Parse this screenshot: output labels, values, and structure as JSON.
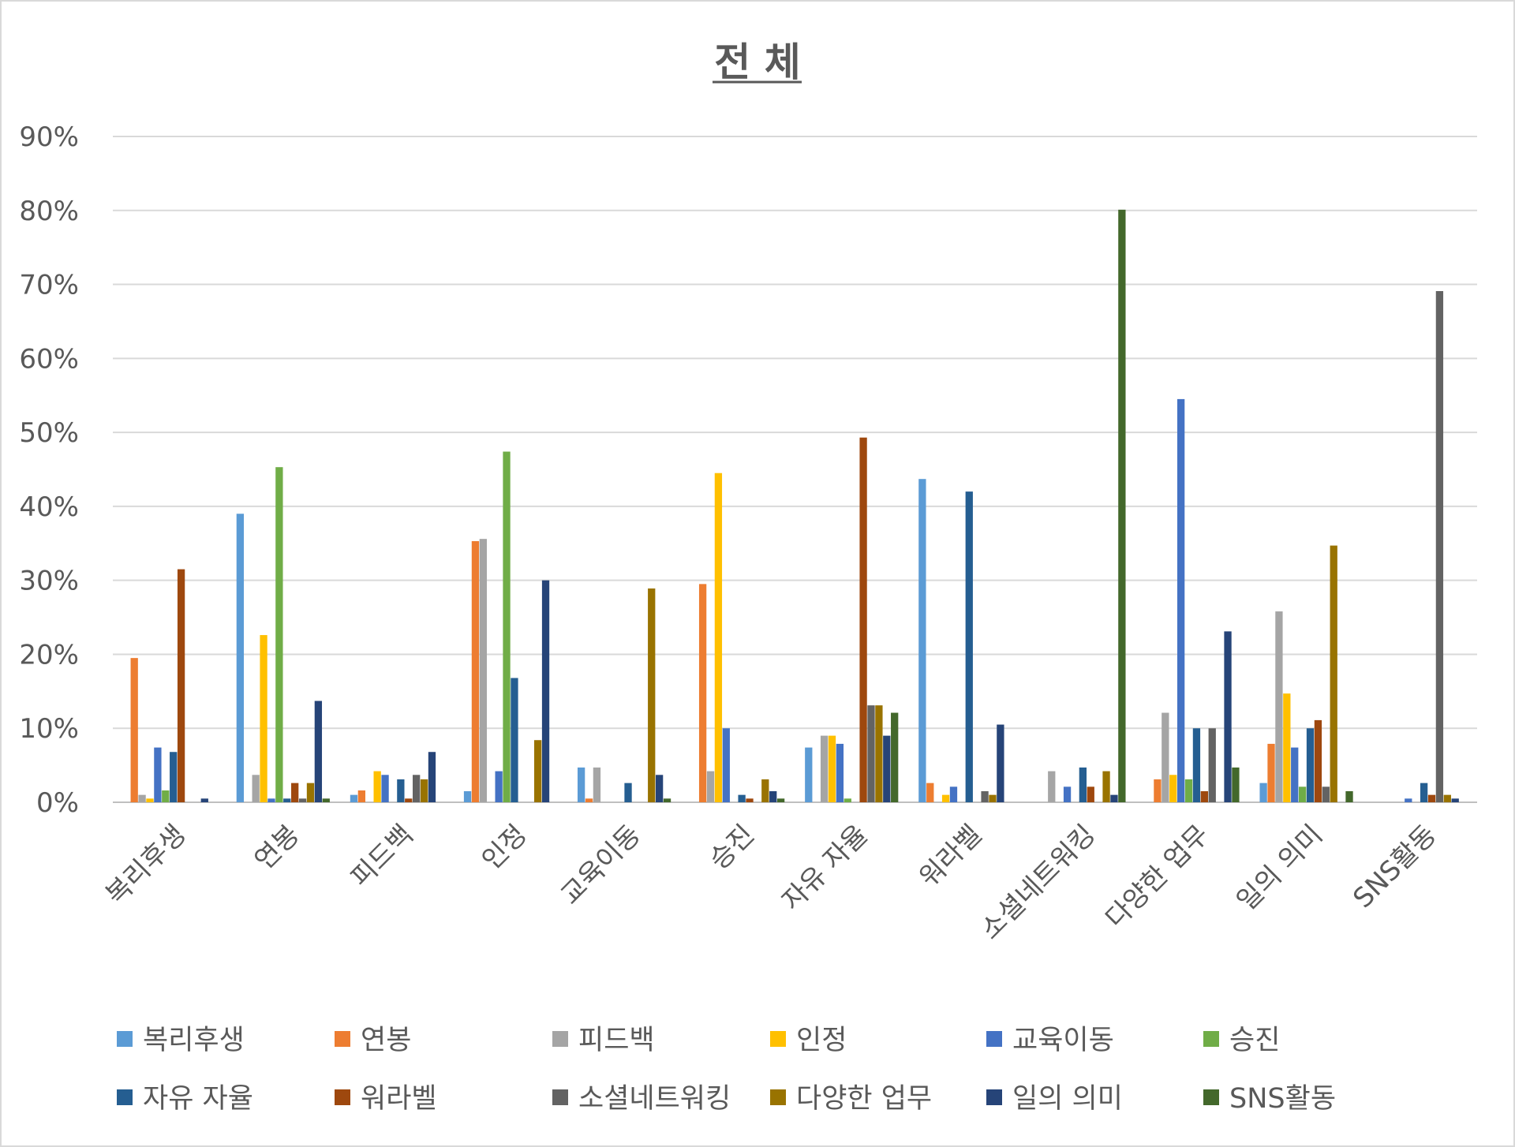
{
  "chart_data": {
    "type": "bar",
    "title": "전 체",
    "xlabel": "",
    "ylabel": "",
    "ylim": [
      0,
      90
    ],
    "yticks": [
      "0%",
      "10%",
      "20%",
      "30%",
      "40%",
      "50%",
      "60%",
      "70%",
      "80%",
      "90%"
    ],
    "grid": true,
    "legend_position": "bottom",
    "categories": [
      "복리후생",
      "연봉",
      "피드백",
      "인정",
      "교육이동",
      "승진",
      "자유 자율",
      "워라벨",
      "소셜네트워킹",
      "다양한 업무",
      "일의 의미",
      "SNS활동"
    ],
    "series": [
      {
        "name": "복리후생",
        "color": "#5b9bd5",
        "values": [
          0,
          39,
          1,
          1.5,
          4.7,
          0,
          7.4,
          43.7,
          0,
          0,
          2.6,
          0
        ]
      },
      {
        "name": "연봉",
        "color": "#ed7d31",
        "values": [
          19.5,
          0,
          1.6,
          35.3,
          0.5,
          29.5,
          0,
          2.6,
          0,
          3.1,
          7.9,
          0
        ]
      },
      {
        "name": "피드백",
        "color": "#a5a5a5",
        "values": [
          1,
          3.7,
          0,
          35.6,
          4.7,
          4.2,
          9,
          0,
          4.2,
          12.1,
          25.8,
          0
        ]
      },
      {
        "name": "인정",
        "color": "#ffc000",
        "values": [
          0.5,
          22.6,
          4.2,
          0,
          0,
          44.5,
          9,
          1,
          0,
          3.7,
          14.7,
          0
        ]
      },
      {
        "name": "교육이동",
        "color": "#4472c4",
        "values": [
          7.4,
          0.5,
          3.7,
          4.2,
          0,
          10,
          7.9,
          2.1,
          2.1,
          54.5,
          7.4,
          0.5
        ]
      },
      {
        "name": "승진",
        "color": "#70ad47",
        "values": [
          1.6,
          45.3,
          0,
          47.4,
          0,
          0,
          0.5,
          0,
          0,
          3.1,
          2.1,
          0
        ]
      },
      {
        "name": "자유 자율",
        "color": "#255e91",
        "values": [
          6.8,
          0.5,
          3.1,
          16.8,
          2.6,
          1,
          0,
          42,
          4.7,
          10,
          10,
          2.6
        ]
      },
      {
        "name": "워라벨",
        "color": "#9e480e",
        "values": [
          31.5,
          2.6,
          0.5,
          0,
          0,
          0.5,
          49.3,
          0,
          2.1,
          1.5,
          11.1,
          1
        ]
      },
      {
        "name": "소셜네트워킹",
        "color": "#636363",
        "values": [
          0,
          0.5,
          3.7,
          0,
          0,
          0,
          13.1,
          1.5,
          0,
          10,
          2.1,
          69.1
        ]
      },
      {
        "name": "다양한 업무",
        "color": "#997300",
        "values": [
          0,
          2.6,
          3.1,
          8.4,
          28.9,
          3.1,
          13.1,
          1,
          4.2,
          0,
          34.7,
          1
        ]
      },
      {
        "name": "일의 의미",
        "color": "#264478",
        "values": [
          0.5,
          13.7,
          6.8,
          30,
          3.7,
          1.5,
          9,
          10.5,
          1,
          23.1,
          0,
          0.5
        ]
      },
      {
        "name": "SNS활동",
        "color": "#43682b",
        "values": [
          0,
          0.5,
          0,
          0,
          0.5,
          0.5,
          12.1,
          0,
          80.1,
          4.7,
          1.5,
          0
        ]
      }
    ]
  }
}
